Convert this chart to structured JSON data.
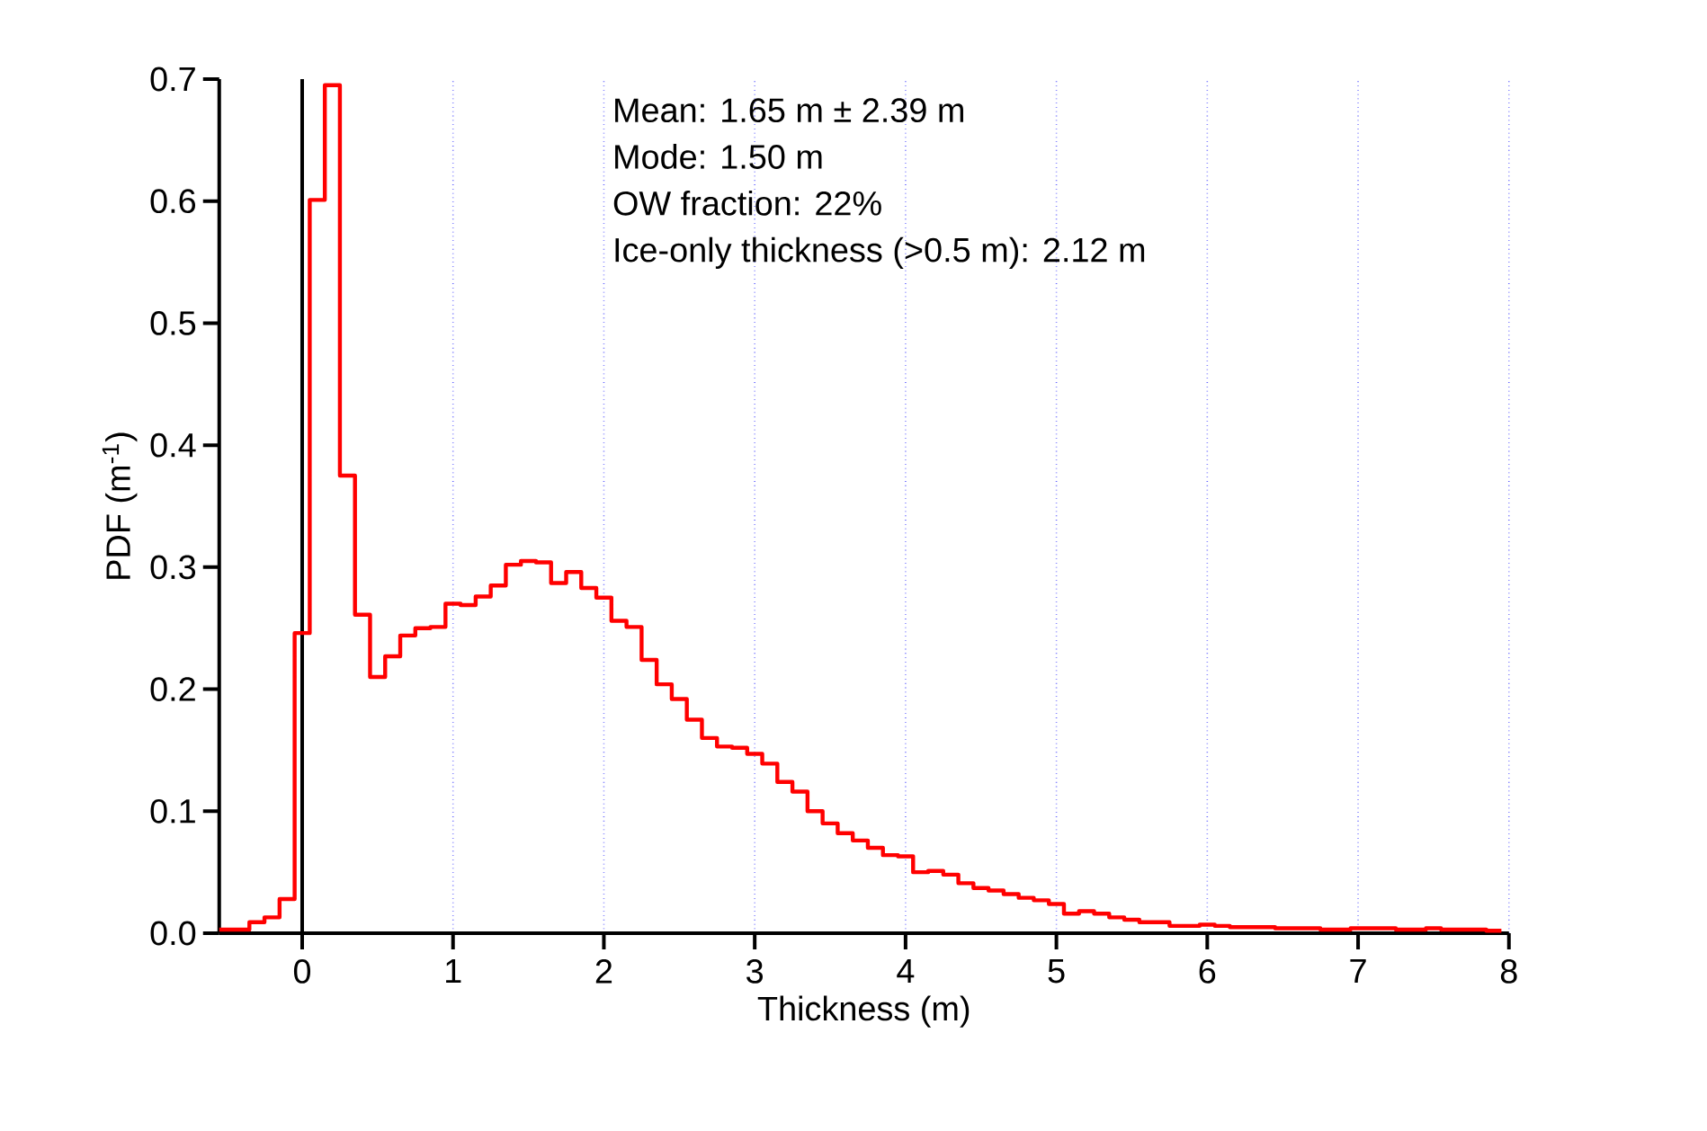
{
  "chart_data": {
    "type": "histogram",
    "xlabel": "Thickness (m)",
    "ylabel": "PDF (m$^{-1}$)",
    "bins": [
      -0.55,
      -0.45,
      -0.35,
      -0.25,
      -0.15,
      -0.05,
      0.05,
      0.15,
      0.25,
      0.35,
      0.45,
      0.55,
      0.65,
      0.75,
      0.85,
      0.95,
      1.05,
      1.15,
      1.25,
      1.35,
      1.45,
      1.55,
      1.65,
      1.75,
      1.85,
      1.95,
      2.05,
      2.15,
      2.25,
      2.35,
      2.45,
      2.55,
      2.65,
      2.75,
      2.85,
      2.95,
      3.05,
      3.15,
      3.25,
      3.35,
      3.45,
      3.55,
      3.65,
      3.75,
      3.85,
      3.95,
      4.05,
      4.15,
      4.25,
      4.35,
      4.45,
      4.55,
      4.65,
      4.75,
      4.85,
      4.95,
      5.05,
      5.15,
      5.25,
      5.35,
      5.45,
      5.55,
      5.65,
      5.75,
      5.85,
      5.95,
      6.05,
      6.15,
      6.25,
      6.35,
      6.45,
      6.55,
      6.65,
      6.75,
      6.85,
      6.95,
      7.05,
      7.15,
      7.25,
      7.35,
      7.45,
      7.55,
      7.65,
      7.75,
      7.85,
      7.95
    ],
    "values": [
      0.003,
      0.003,
      0.009,
      0.013,
      0.028,
      0.246,
      0.601,
      0.695,
      0.375,
      0.261,
      0.21,
      0.227,
      0.244,
      0.25,
      0.251,
      0.27,
      0.269,
      0.276,
      0.285,
      0.302,
      0.305,
      0.304,
      0.287,
      0.296,
      0.283,
      0.275,
      0.256,
      0.251,
      0.224,
      0.204,
      0.192,
      0.175,
      0.16,
      0.153,
      0.152,
      0.147,
      0.139,
      0.124,
      0.116,
      0.1,
      0.09,
      0.082,
      0.076,
      0.07,
      0.064,
      0.063,
      0.05,
      0.051,
      0.048,
      0.041,
      0.037,
      0.035,
      0.032,
      0.029,
      0.027,
      0.024,
      0.016,
      0.018,
      0.016,
      0.013,
      0.011,
      0.009,
      0.009,
      0.006,
      0.006,
      0.007,
      0.006,
      0.005,
      0.005,
      0.005,
      0.004,
      0.004,
      0.004,
      0.003,
      0.003,
      0.004,
      0.004,
      0.004,
      0.003,
      0.003,
      0.004,
      0.003,
      0.003,
      0.003,
      0.002
    ],
    "color": "#ff0000",
    "xlim": [
      -0.55,
      8
    ],
    "ylim": [
      0,
      0.7
    ],
    "xticks": [
      0,
      1,
      2,
      3,
      4,
      5,
      6,
      7,
      8
    ],
    "yticks": [
      {
        "value": 0,
        "label": "0.0"
      },
      {
        "value": 0.1,
        "label": "0.1"
      },
      {
        "value": 0.2,
        "label": "0.2"
      },
      {
        "value": 0.3,
        "label": "0.3"
      },
      {
        "value": 0.4,
        "label": "0.4"
      },
      {
        "value": 0.5,
        "label": "0.5"
      },
      {
        "value": 0.6,
        "label": "0.6"
      },
      {
        "value": 0.7,
        "label": "0.7"
      }
    ],
    "grid": "x",
    "ref_lines": [
      {
        "axis": "x",
        "value": 0,
        "color": "#000000"
      }
    ],
    "annotations": [
      "Mean: 1.65 m ± 2.39 m",
      "Mode: 1.50 m",
      "OW fraction: 22%",
      "Ice-only thickness (>0.5 m): 2.12 m"
    ]
  }
}
